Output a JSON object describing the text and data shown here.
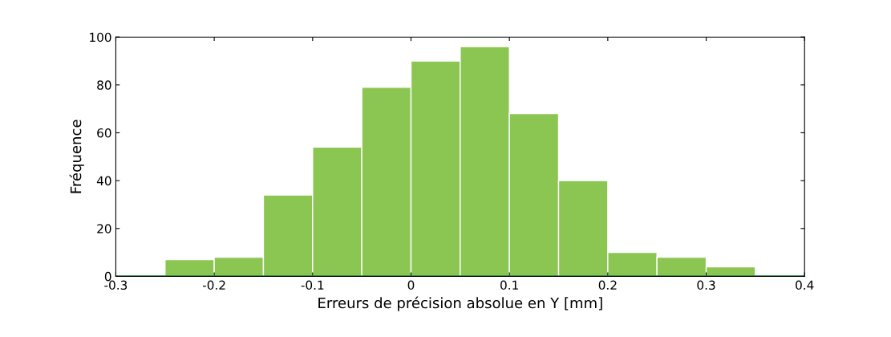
{
  "chart_data": {
    "type": "histogram",
    "xlabel": "Erreurs de précision absolue en Y [mm]",
    "ylabel": "Fréquence",
    "bins": [
      -0.25,
      -0.2,
      -0.15,
      -0.1,
      -0.05,
      0,
      0.05,
      0.1,
      0.15,
      0.2,
      0.25,
      0.3,
      0.35
    ],
    "values": [
      7,
      8,
      34,
      54,
      79,
      90,
      96,
      68,
      40,
      10,
      8,
      4
    ],
    "color": "#8bc653",
    "xlim": [
      -0.3,
      0.4
    ],
    "xticks": [
      -0.3,
      -0.2,
      -0.1,
      0,
      0.1,
      0.2,
      0.3,
      0.4
    ],
    "ylim": [
      0,
      100
    ],
    "yticks": [
      0,
      20,
      40,
      60,
      80,
      100
    ],
    "grid": false
  }
}
